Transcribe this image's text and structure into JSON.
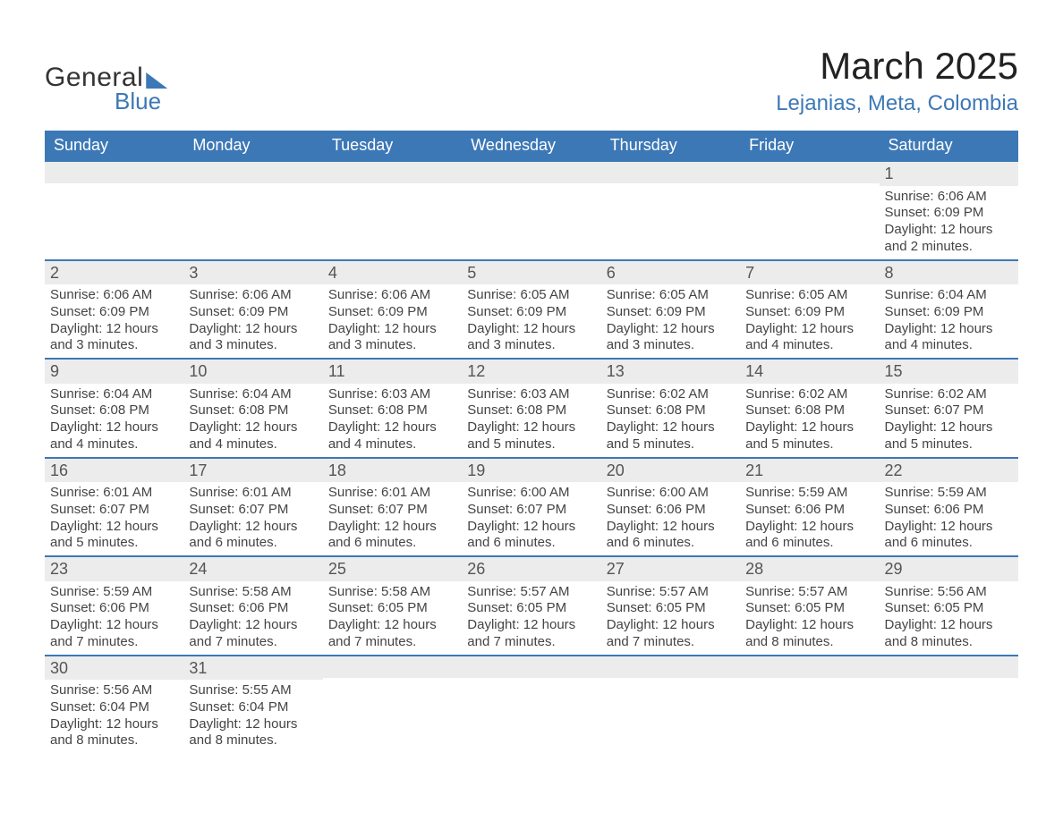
{
  "logo": {
    "line1": "General",
    "line2": "Blue"
  },
  "title": "March 2025",
  "location": "Lejanias, Meta, Colombia",
  "colors": {
    "header_blue": "#3d78b6",
    "light_gray": "#ececec",
    "background": "#ffffff",
    "text": "#333333"
  },
  "typography": {
    "title_fontsize_pt": 32,
    "location_fontsize_pt": 18,
    "header_fontsize_pt": 14,
    "body_fontsize_pt": 11,
    "font_family": "Arial"
  },
  "calendar": {
    "type": "table",
    "columns": [
      "Sunday",
      "Monday",
      "Tuesday",
      "Wednesday",
      "Thursday",
      "Friday",
      "Saturday"
    ],
    "weeks": [
      [
        null,
        null,
        null,
        null,
        null,
        null,
        {
          "day": "1",
          "sunrise": "Sunrise: 6:06 AM",
          "sunset": "Sunset: 6:09 PM",
          "daylight": "Daylight: 12 hours and 2 minutes."
        }
      ],
      [
        {
          "day": "2",
          "sunrise": "Sunrise: 6:06 AM",
          "sunset": "Sunset: 6:09 PM",
          "daylight": "Daylight: 12 hours and 3 minutes."
        },
        {
          "day": "3",
          "sunrise": "Sunrise: 6:06 AM",
          "sunset": "Sunset: 6:09 PM",
          "daylight": "Daylight: 12 hours and 3 minutes."
        },
        {
          "day": "4",
          "sunrise": "Sunrise: 6:06 AM",
          "sunset": "Sunset: 6:09 PM",
          "daylight": "Daylight: 12 hours and 3 minutes."
        },
        {
          "day": "5",
          "sunrise": "Sunrise: 6:05 AM",
          "sunset": "Sunset: 6:09 PM",
          "daylight": "Daylight: 12 hours and 3 minutes."
        },
        {
          "day": "6",
          "sunrise": "Sunrise: 6:05 AM",
          "sunset": "Sunset: 6:09 PM",
          "daylight": "Daylight: 12 hours and 3 minutes."
        },
        {
          "day": "7",
          "sunrise": "Sunrise: 6:05 AM",
          "sunset": "Sunset: 6:09 PM",
          "daylight": "Daylight: 12 hours and 4 minutes."
        },
        {
          "day": "8",
          "sunrise": "Sunrise: 6:04 AM",
          "sunset": "Sunset: 6:09 PM",
          "daylight": "Daylight: 12 hours and 4 minutes."
        }
      ],
      [
        {
          "day": "9",
          "sunrise": "Sunrise: 6:04 AM",
          "sunset": "Sunset: 6:08 PM",
          "daylight": "Daylight: 12 hours and 4 minutes."
        },
        {
          "day": "10",
          "sunrise": "Sunrise: 6:04 AM",
          "sunset": "Sunset: 6:08 PM",
          "daylight": "Daylight: 12 hours and 4 minutes."
        },
        {
          "day": "11",
          "sunrise": "Sunrise: 6:03 AM",
          "sunset": "Sunset: 6:08 PM",
          "daylight": "Daylight: 12 hours and 4 minutes."
        },
        {
          "day": "12",
          "sunrise": "Sunrise: 6:03 AM",
          "sunset": "Sunset: 6:08 PM",
          "daylight": "Daylight: 12 hours and 5 minutes."
        },
        {
          "day": "13",
          "sunrise": "Sunrise: 6:02 AM",
          "sunset": "Sunset: 6:08 PM",
          "daylight": "Daylight: 12 hours and 5 minutes."
        },
        {
          "day": "14",
          "sunrise": "Sunrise: 6:02 AM",
          "sunset": "Sunset: 6:08 PM",
          "daylight": "Daylight: 12 hours and 5 minutes."
        },
        {
          "day": "15",
          "sunrise": "Sunrise: 6:02 AM",
          "sunset": "Sunset: 6:07 PM",
          "daylight": "Daylight: 12 hours and 5 minutes."
        }
      ],
      [
        {
          "day": "16",
          "sunrise": "Sunrise: 6:01 AM",
          "sunset": "Sunset: 6:07 PM",
          "daylight": "Daylight: 12 hours and 5 minutes."
        },
        {
          "day": "17",
          "sunrise": "Sunrise: 6:01 AM",
          "sunset": "Sunset: 6:07 PM",
          "daylight": "Daylight: 12 hours and 6 minutes."
        },
        {
          "day": "18",
          "sunrise": "Sunrise: 6:01 AM",
          "sunset": "Sunset: 6:07 PM",
          "daylight": "Daylight: 12 hours and 6 minutes."
        },
        {
          "day": "19",
          "sunrise": "Sunrise: 6:00 AM",
          "sunset": "Sunset: 6:07 PM",
          "daylight": "Daylight: 12 hours and 6 minutes."
        },
        {
          "day": "20",
          "sunrise": "Sunrise: 6:00 AM",
          "sunset": "Sunset: 6:06 PM",
          "daylight": "Daylight: 12 hours and 6 minutes."
        },
        {
          "day": "21",
          "sunrise": "Sunrise: 5:59 AM",
          "sunset": "Sunset: 6:06 PM",
          "daylight": "Daylight: 12 hours and 6 minutes."
        },
        {
          "day": "22",
          "sunrise": "Sunrise: 5:59 AM",
          "sunset": "Sunset: 6:06 PM",
          "daylight": "Daylight: 12 hours and 6 minutes."
        }
      ],
      [
        {
          "day": "23",
          "sunrise": "Sunrise: 5:59 AM",
          "sunset": "Sunset: 6:06 PM",
          "daylight": "Daylight: 12 hours and 7 minutes."
        },
        {
          "day": "24",
          "sunrise": "Sunrise: 5:58 AM",
          "sunset": "Sunset: 6:06 PM",
          "daylight": "Daylight: 12 hours and 7 minutes."
        },
        {
          "day": "25",
          "sunrise": "Sunrise: 5:58 AM",
          "sunset": "Sunset: 6:05 PM",
          "daylight": "Daylight: 12 hours and 7 minutes."
        },
        {
          "day": "26",
          "sunrise": "Sunrise: 5:57 AM",
          "sunset": "Sunset: 6:05 PM",
          "daylight": "Daylight: 12 hours and 7 minutes."
        },
        {
          "day": "27",
          "sunrise": "Sunrise: 5:57 AM",
          "sunset": "Sunset: 6:05 PM",
          "daylight": "Daylight: 12 hours and 7 minutes."
        },
        {
          "day": "28",
          "sunrise": "Sunrise: 5:57 AM",
          "sunset": "Sunset: 6:05 PM",
          "daylight": "Daylight: 12 hours and 8 minutes."
        },
        {
          "day": "29",
          "sunrise": "Sunrise: 5:56 AM",
          "sunset": "Sunset: 6:05 PM",
          "daylight": "Daylight: 12 hours and 8 minutes."
        }
      ],
      [
        {
          "day": "30",
          "sunrise": "Sunrise: 5:56 AM",
          "sunset": "Sunset: 6:04 PM",
          "daylight": "Daylight: 12 hours and 8 minutes."
        },
        {
          "day": "31",
          "sunrise": "Sunrise: 5:55 AM",
          "sunset": "Sunset: 6:04 PM",
          "daylight": "Daylight: 12 hours and 8 minutes."
        },
        null,
        null,
        null,
        null,
        null
      ]
    ]
  }
}
